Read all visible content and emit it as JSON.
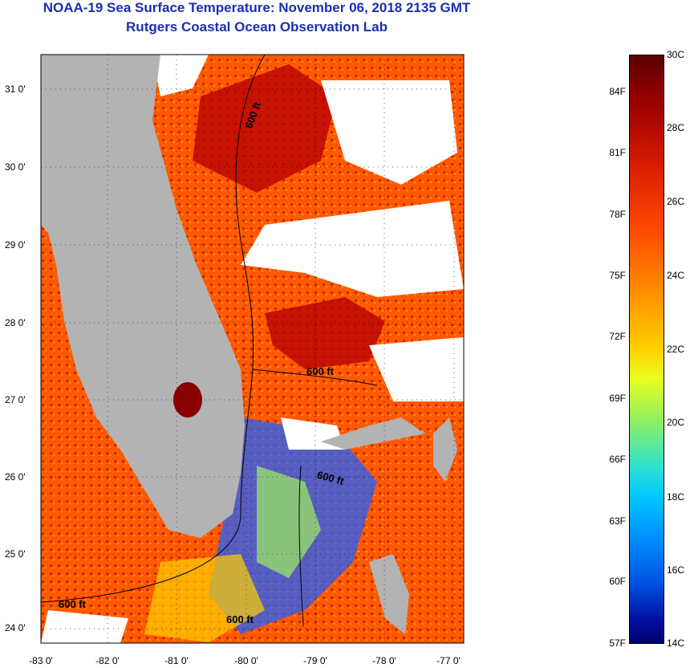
{
  "header": {
    "title": "NOAA-19 Sea Surface Temperature:  November 06, 2018 2135 GMT",
    "subtitle": "Rutgers Coastal Ocean Observation Lab"
  },
  "map": {
    "lat_labels": [
      "31 0'",
      "30 0'",
      "29 0'",
      "28 0'",
      "27 0'",
      "26 0'",
      "25 0'",
      "24 0'"
    ],
    "lon_labels": [
      "-83 0'",
      "-82 0'",
      "-81 0'",
      "-80 0'",
      "-79 0'",
      "-78 0'",
      "-77 0'"
    ],
    "isobath_label": "600 ft",
    "colors": {
      "land": "#b3b3b3",
      "cloud": "#ffffff",
      "warm": "#e83000",
      "hot": "#b00000",
      "cool": "#0030d0"
    }
  },
  "colorbar": {
    "celsius": [
      "30C",
      "28C",
      "26C",
      "24C",
      "22C",
      "20C",
      "18C",
      "16C",
      "14C"
    ],
    "fahrenheit": [
      "84F",
      "81F",
      "78F",
      "75F",
      "72F",
      "69F",
      "66F",
      "63F",
      "60F",
      "57F"
    ]
  }
}
